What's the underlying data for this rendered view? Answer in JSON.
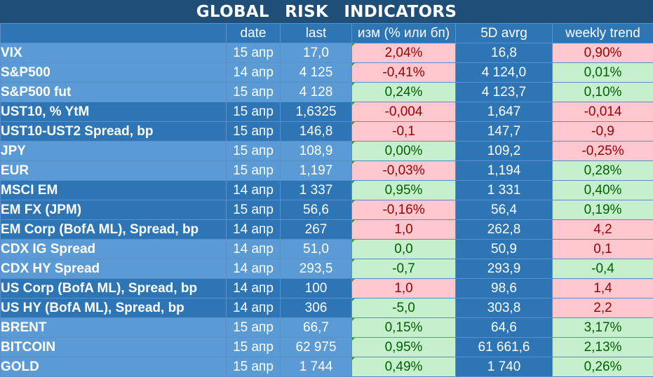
{
  "title": "GLOBAL   RISK   INDICATORS",
  "columns": [
    "",
    "date",
    "last",
    "изм (% или бп)",
    "5D avrg",
    "weekly trend"
  ],
  "colors": {
    "header_bg": "#1f4e79",
    "row_light": "#5b9bd5",
    "row_dark": "#2e75b6",
    "positive_bg": "#c6efce",
    "positive_text": "#006100",
    "negative_bg": "#ffc7ce",
    "negative_text": "#9c0006"
  },
  "rows": [
    {
      "name": "VIX",
      "date": "15 апр",
      "last": "17,0",
      "change": "2,04%",
      "change_sign": "neg",
      "avg5d": "16,8",
      "trend": "0,90%",
      "trend_sign": "neg",
      "shade": "light",
      "group_start": true
    },
    {
      "name": "S&P500",
      "date": "14 апр",
      "last": "4 125",
      "change": "-0,41%",
      "change_sign": "neg",
      "avg5d": "4 124,0",
      "trend": "0,01%",
      "trend_sign": "pos",
      "shade": "light",
      "group_start": false
    },
    {
      "name": "S&P500 fut",
      "date": "15 апр",
      "last": "4 128",
      "change": "0,24%",
      "change_sign": "pos",
      "avg5d": "4 123,7",
      "trend": "0,10%",
      "trend_sign": "pos",
      "shade": "light",
      "group_start": false
    },
    {
      "name": "UST10, % YtM",
      "date": "15 апр",
      "last": "1,6325",
      "change": "-0,004",
      "change_sign": "neg",
      "avg5d": "1,647",
      "trend": "-0,014",
      "trend_sign": "neg",
      "shade": "dark",
      "group_start": true
    },
    {
      "name": "UST10-UST2 Spread, bp",
      "date": "15 апр",
      "last": "146,8",
      "change": "-0,1",
      "change_sign": "neg",
      "avg5d": "147,7",
      "trend": "-0,9",
      "trend_sign": "neg",
      "shade": "dark",
      "group_start": false
    },
    {
      "name": "JPY",
      "date": "15 апр",
      "last": "108,9",
      "change": "0,00%",
      "change_sign": "pos",
      "avg5d": "109,2",
      "trend": "-0,25%",
      "trend_sign": "neg",
      "shade": "light",
      "group_start": true
    },
    {
      "name": "EUR",
      "date": "15 апр",
      "last": "1,197",
      "change": "-0,03%",
      "change_sign": "neg",
      "avg5d": "1,194",
      "trend": "0,28%",
      "trend_sign": "pos",
      "shade": "light",
      "group_start": false
    },
    {
      "name": "MSCI EM",
      "date": "14 апр",
      "last": "1 337",
      "change": "0,95%",
      "change_sign": "pos",
      "avg5d": "1 331",
      "trend": "0,40%",
      "trend_sign": "pos",
      "shade": "dark",
      "group_start": true
    },
    {
      "name": "EM FX (JPM)",
      "date": "15 апр",
      "last": "56,6",
      "change": "-0,16%",
      "change_sign": "neg",
      "avg5d": "56,4",
      "trend": "0,19%",
      "trend_sign": "pos",
      "shade": "dark",
      "group_start": false
    },
    {
      "name": "EM Corp (BofA ML), Spread, bp",
      "date": "14 апр",
      "last": "267",
      "change": "1,0",
      "change_sign": "neg",
      "avg5d": "262,8",
      "trend": "4,2",
      "trend_sign": "neg",
      "shade": "dark",
      "group_start": false
    },
    {
      "name": "CDX IG Spread",
      "date": "14 апр",
      "last": "51,0",
      "change": "0,0",
      "change_sign": "pos",
      "avg5d": "50,9",
      "trend": "0,1",
      "trend_sign": "neg",
      "shade": "light",
      "group_start": true
    },
    {
      "name": "CDX HY Spread",
      "date": "14 апр",
      "last": "293,5",
      "change": "-0,7",
      "change_sign": "pos",
      "avg5d": "293,9",
      "trend": "-0,4",
      "trend_sign": "pos",
      "shade": "light",
      "group_start": false
    },
    {
      "name": "US Corp (BofA ML), Spread, bp",
      "date": "14 апр",
      "last": "100",
      "change": "1,0",
      "change_sign": "neg",
      "avg5d": "98,6",
      "trend": "1,4",
      "trend_sign": "neg",
      "shade": "dark",
      "group_start": true
    },
    {
      "name": "US HY (BofA ML), Spread, bp",
      "date": "14 апр",
      "last": "306",
      "change": "-5,0",
      "change_sign": "pos",
      "avg5d": "303,8",
      "trend": "2,2",
      "trend_sign": "neg",
      "shade": "dark",
      "group_start": false
    },
    {
      "name": "BRENT",
      "date": "15 апр",
      "last": "66,7",
      "change": "0,15%",
      "change_sign": "pos",
      "avg5d": "64,6",
      "trend": "3,17%",
      "trend_sign": "pos",
      "shade": "light",
      "group_start": true
    },
    {
      "name": "BITCOIN",
      "date": "15 апр",
      "last": "62 975",
      "change": "0,95%",
      "change_sign": "pos",
      "avg5d": "61 661,6",
      "trend": "2,13%",
      "trend_sign": "pos",
      "shade": "light",
      "group_start": false
    },
    {
      "name": "GOLD",
      "date": "15 апр",
      "last": "1 744",
      "change": "0,49%",
      "change_sign": "pos",
      "avg5d": "1 740",
      "trend": "0,26%",
      "trend_sign": "pos",
      "shade": "light",
      "group_start": false
    }
  ]
}
